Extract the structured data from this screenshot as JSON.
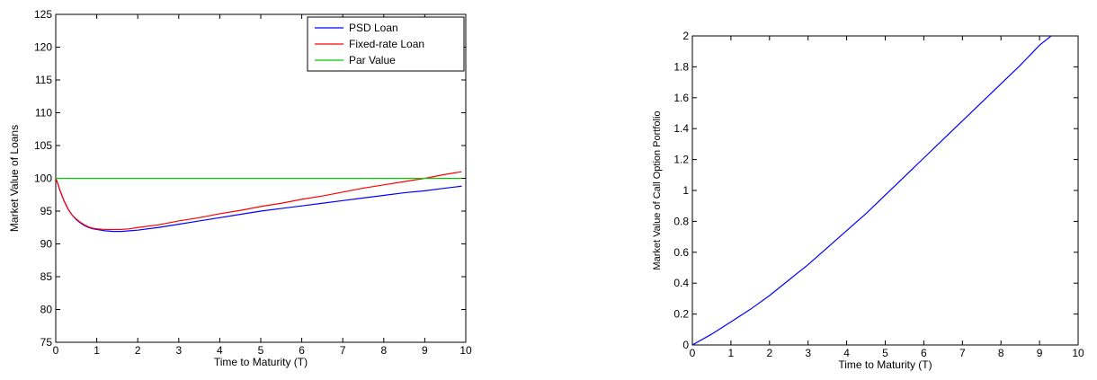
{
  "chart_data": [
    {
      "type": "line",
      "xlabel": "Time to Maturity (T)",
      "ylabel": "Market Value of Loans",
      "xlim": [
        0,
        10
      ],
      "ylim": [
        75,
        125
      ],
      "xticks": [
        0,
        1,
        2,
        3,
        4,
        5,
        6,
        7,
        8,
        9,
        10
      ],
      "yticks": [
        75,
        80,
        85,
        90,
        95,
        100,
        105,
        110,
        115,
        120,
        125
      ],
      "grid": false,
      "legend": "top-right",
      "series": [
        {
          "name": "PSD Loan",
          "color": "#0000ff",
          "x": [
            0,
            0.05,
            0.1,
            0.2,
            0.3,
            0.4,
            0.5,
            0.6,
            0.7,
            0.8,
            0.9,
            1.0,
            1.2,
            1.4,
            1.6,
            1.8,
            2.0,
            2.5,
            3,
            3.5,
            4,
            4.5,
            5,
            5.5,
            6,
            6.5,
            7,
            7.5,
            8,
            8.5,
            9,
            9.5,
            9.9
          ],
          "y": [
            100,
            99.2,
            98.2,
            96.6,
            95.3,
            94.4,
            93.7,
            93.2,
            92.8,
            92.5,
            92.3,
            92.2,
            92.0,
            91.9,
            91.9,
            92.0,
            92.1,
            92.5,
            93.0,
            93.5,
            94.0,
            94.5,
            95.0,
            95.4,
            95.8,
            96.2,
            96.6,
            97.0,
            97.4,
            97.8,
            98.1,
            98.5,
            98.8
          ]
        },
        {
          "name": "Fixed-rate Loan",
          "color": "#ff0000",
          "x": [
            0,
            0.05,
            0.1,
            0.2,
            0.3,
            0.4,
            0.5,
            0.6,
            0.7,
            0.8,
            0.9,
            1.0,
            1.2,
            1.4,
            1.6,
            1.8,
            2.0,
            2.5,
            3,
            3.5,
            4,
            4.5,
            5,
            5.5,
            6,
            6.5,
            7,
            7.5,
            8,
            8.5,
            9,
            9.5,
            9.9
          ],
          "y": [
            100,
            99.2,
            98.2,
            96.6,
            95.3,
            94.4,
            93.8,
            93.3,
            92.9,
            92.6,
            92.4,
            92.3,
            92.2,
            92.2,
            92.2,
            92.3,
            92.5,
            92.9,
            93.5,
            94.0,
            94.6,
            95.1,
            95.7,
            96.2,
            96.8,
            97.3,
            97.9,
            98.5,
            99.0,
            99.5,
            100.0,
            100.6,
            101.0
          ]
        },
        {
          "name": "Par Value",
          "color": "#00cc00",
          "x": [
            0,
            9.9
          ],
          "y": [
            100,
            100
          ]
        }
      ]
    },
    {
      "type": "line",
      "xlabel": "Time to Maturity (T)",
      "ylabel": "Market Value of Call Option Portfolio",
      "xlim": [
        0,
        10
      ],
      "ylim": [
        0,
        2
      ],
      "xticks": [
        0,
        1,
        2,
        3,
        4,
        5,
        6,
        7,
        8,
        9,
        10
      ],
      "yticks": [
        0,
        0.2,
        0.4,
        0.6,
        0.8,
        1,
        1.2,
        1.4,
        1.6,
        1.8,
        2
      ],
      "grid": false,
      "series": [
        {
          "color": "#0000ff",
          "x": [
            0,
            0.5,
            1,
            1.5,
            2,
            2.5,
            3,
            3.5,
            4,
            4.5,
            5,
            5.5,
            6,
            6.5,
            7,
            7.5,
            8,
            8.5,
            9,
            9.3
          ],
          "y": [
            0,
            0.07,
            0.15,
            0.23,
            0.32,
            0.42,
            0.52,
            0.63,
            0.74,
            0.85,
            0.97,
            1.09,
            1.21,
            1.33,
            1.45,
            1.57,
            1.69,
            1.81,
            1.94,
            2.0
          ]
        }
      ]
    }
  ]
}
